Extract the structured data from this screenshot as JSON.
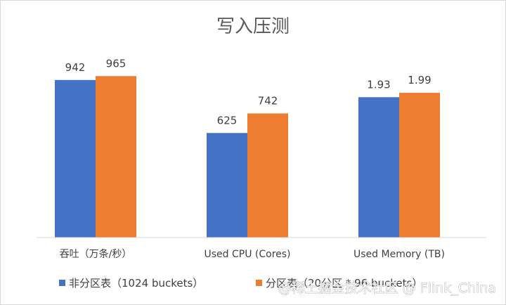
{
  "chart_data": {
    "type": "bar",
    "title": "写入压测",
    "categories": [
      "吞吐（万条/秒）",
      "Used CPU (Cores)",
      "Used Memory (TB)"
    ],
    "series": [
      {
        "name": "非分区表（1024 buckets）",
        "color": "#4472C4",
        "values": [
          942,
          625,
          1.93
        ],
        "labels": [
          "942",
          "625",
          "1.93"
        ]
      },
      {
        "name": "分区表（20分区 * 96 buckets）",
        "color": "#ED7D31",
        "values": [
          965,
          742,
          1.99
        ],
        "labels": [
          "965",
          "742",
          "1.99"
        ]
      }
    ],
    "xlabel": "",
    "ylabel": "",
    "grid": false,
    "legend": "bottom"
  },
  "watermark": "@稀土掘金技术社区 @ Flink_China"
}
